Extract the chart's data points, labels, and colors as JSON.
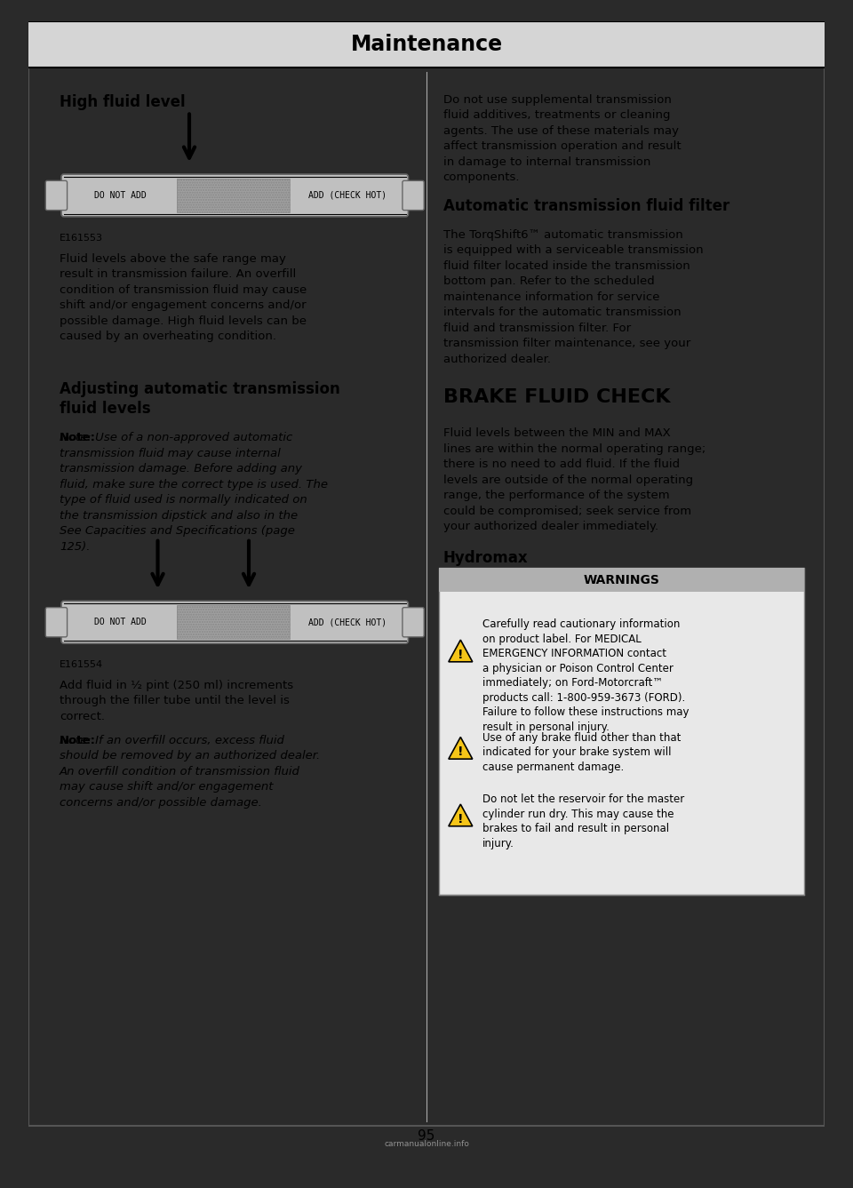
{
  "page_bg": "#ffffff",
  "outer_bg": "#2a2a2a",
  "header_text": "Maintenance",
  "section1_title": "High fluid level",
  "dipstick_label_left": "DO NOT ADD",
  "dipstick_label_right": "ADD (CHECK HOT)",
  "dipstick_code1": "E161553",
  "body1": "Fluid levels above the safe range may\nresult in transmission failure. An overfill\ncondition of transmission fluid may cause\nshift and/or engagement concerns and/or\npossible damage. High fluid levels can be\ncaused by an overheating condition.",
  "section2_title": "Adjusting automatic transmission\nfluid levels",
  "note2_bold": "Note:",
  "note2_italic": " Use of a non-approved automatic\ntransmission fluid may cause internal\ntransmission damage. Before adding any\nfluid, make sure the correct type is used. The\ntype of fluid used is normally indicated on\nthe transmission dipstick and also in the\nSee ",
  "note2_bold2": "Capacities and Specifications",
  "note2_end": " (page\n125).",
  "dipstick_code2": "E161554",
  "body2": "Add fluid in ½ pint (250 ml) increments\nthrough the filler tube until the level is\ncorrect.",
  "note3_bold": "Note:",
  "note3_italic": " If an overfill occurs, excess fluid\nshould be removed by an authorized dealer.\nAn overfill condition of transmission fluid\nmay cause shift and/or engagement\nconcerns and/or possible damage.",
  "right_body1": "Do not use supplemental transmission\nfluid additives, treatments or cleaning\nagents. The use of these materials may\naffect transmission operation and result\nin damage to internal transmission\ncomponents.",
  "right_section_title": "Automatic transmission fluid filter",
  "right_body2": "The TorqShift6™ automatic transmission\nis equipped with a serviceable transmission\nfluid filter located inside the transmission\nbottom pan. Refer to the scheduled\nmaintenance information for service\nintervals for the automatic transmission\nfluid and transmission filter. For\ntransmission filter maintenance, see your\nauthorized dealer.",
  "brake_title": "BRAKE FLUID CHECK",
  "brake_body": "Fluid levels between the MIN and MAX\nlines are within the normal operating range;\nthere is no need to add fluid. If the fluid\nlevels are outside of the normal operating\nrange, the performance of the system\ncould be compromised; seek service from\nyour authorized dealer immediately.",
  "hydromax_title": "Hydromax",
  "warnings_header": "WARNINGS",
  "warning1": "Carefully read cautionary information\non product label. For MEDICAL\nEMERGENCY INFORMATION contact\na physician or Poison Control Center\nimmediately; on Ford-Motorcraft™\nproducts call: 1-800-959-3673 (FORD).\nFailure to follow these instructions may\nresult in personal injury.",
  "warning2": "Use of any brake fluid other than that\nindicated for your brake system will\ncause permanent damage.",
  "warning3": "Do not let the reservoir for the master\ncylinder run dry. This may cause the\nbrakes to fail and result in personal\ninjury.",
  "page_number": "95",
  "watermark": "carmanualonline.info"
}
